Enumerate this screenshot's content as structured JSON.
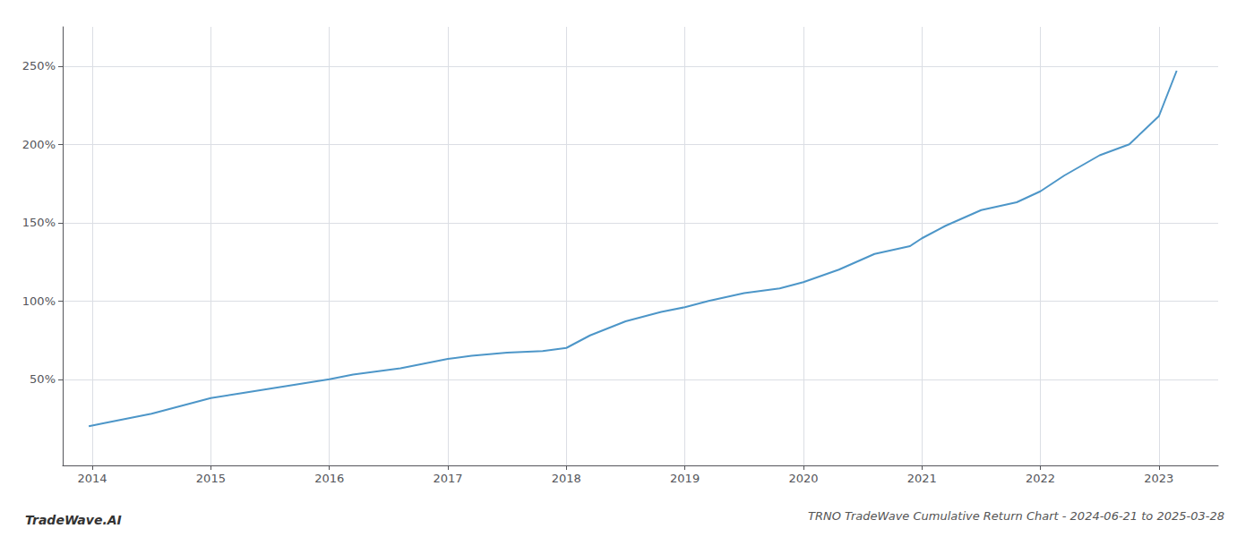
{
  "chart_data": {
    "type": "line",
    "title": "TRNO TradeWave Cumulative Return Chart - 2024-06-21 to 2025-03-28",
    "annotations": [
      {
        "text": "TradeWave.AI"
      }
    ],
    "x": [
      2013.97,
      2014.1,
      2014.3,
      2014.5,
      2014.75,
      2015.0,
      2015.25,
      2015.5,
      2015.75,
      2016.0,
      2016.2,
      2016.4,
      2016.6,
      2016.8,
      2017.0,
      2017.2,
      2017.5,
      2017.8,
      2018.0,
      2018.2,
      2018.5,
      2018.8,
      2019.0,
      2019.2,
      2019.5,
      2019.8,
      2020.0,
      2020.3,
      2020.6,
      2020.9,
      2021.0,
      2021.2,
      2021.5,
      2021.8,
      2022.0,
      2022.2,
      2022.5,
      2022.75,
      2023.0,
      2023.15
    ],
    "values": [
      20,
      22,
      25,
      28,
      33,
      38,
      41,
      44,
      47,
      50,
      53,
      55,
      57,
      60,
      63,
      65,
      67,
      68,
      70,
      78,
      87,
      93,
      96,
      100,
      105,
      108,
      112,
      120,
      130,
      135,
      140,
      148,
      158,
      163,
      170,
      180,
      193,
      200,
      218,
      247
    ],
    "color": "#4d96c8",
    "xlim": [
      2013.75,
      2023.5
    ],
    "ylim": [
      -5,
      275
    ],
    "xticks": [
      2014,
      2015,
      2016,
      2017,
      2018,
      2019,
      2020,
      2021,
      2022,
      2023
    ],
    "yticks": [
      {
        "value": 50,
        "label": "50%"
      },
      {
        "value": 100,
        "label": "100%"
      },
      {
        "value": 150,
        "label": "150%"
      },
      {
        "value": 200,
        "label": "200%"
      },
      {
        "value": 250,
        "label": "250%"
      }
    ],
    "grid": true
  }
}
